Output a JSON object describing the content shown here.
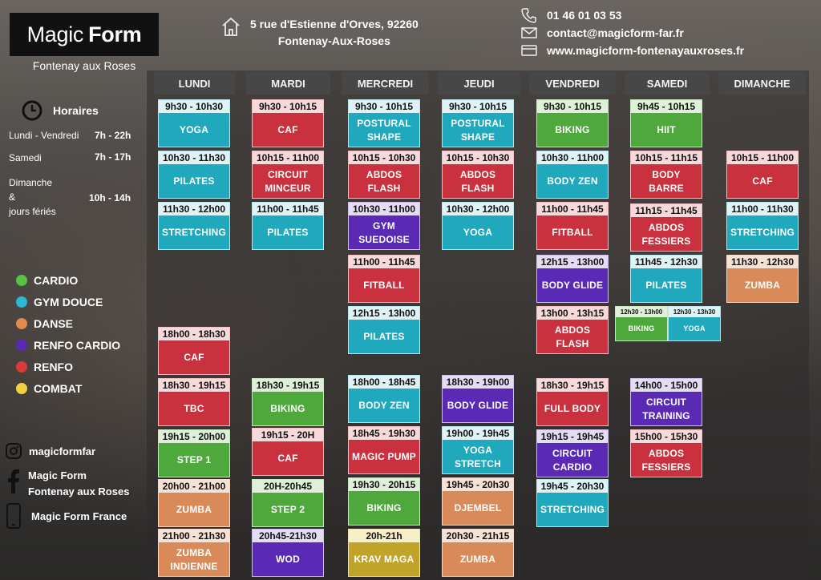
{
  "brand": {
    "magic": "Magic",
    "form": "Form",
    "subtitle": "Fontenay aux Roses"
  },
  "address": {
    "line1": "5 rue d'Estienne d'Orves, 92260",
    "line2": "Fontenay-Aux-Roses"
  },
  "contact": {
    "phone": "01 46 01 03 53",
    "email": "contact@magicform-far.fr",
    "website": "www.magicform-fontenayauxroses.fr"
  },
  "hours": {
    "title": "Horaires",
    "rows": [
      {
        "label": "Lundi - Vendredi",
        "value": "7h - 22h"
      },
      {
        "label": "Samedi",
        "value": "7h - 17h"
      },
      {
        "label1": "Dimanche",
        "label2": "&",
        "label3": "jours fériés",
        "value": "10h - 14h"
      }
    ]
  },
  "legend": [
    {
      "label": "CARDIO",
      "color": "#57c246"
    },
    {
      "label": "GYM DOUCE",
      "color": "#2bb8d0"
    },
    {
      "label": "DANSE",
      "color": "#e08a4d"
    },
    {
      "label": "RENFO CARDIO",
      "color": "#5a2ab4"
    },
    {
      "label": "RENFO",
      "color": "#d93a3a"
    },
    {
      "label": "COMBAT",
      "color": "#f2d040"
    }
  ],
  "social": {
    "instagram": "magicformfar",
    "facebook1": "Magic Form",
    "facebook2": "Fontenay aux Roses",
    "app": "Magic Form France"
  },
  "days": [
    "LUNDI",
    "MARDI",
    "MERCREDI",
    "JEUDI",
    "VENDREDI",
    "SAMEDI",
    "DIMANCHE"
  ],
  "classes": {
    "lundi": [
      {
        "time": "9h30 - 10h30",
        "name": "YOGA",
        "cat": "teal"
      },
      {
        "time": "10h30 - 11h30",
        "name": "PILATES",
        "cat": "teal"
      },
      {
        "time": "11h30 - 12h00",
        "name": "STRETCHING",
        "cat": "teal"
      },
      {
        "time": "18h00 - 18h30",
        "name": "CAF",
        "cat": "red"
      },
      {
        "time": "18h30 - 19h15",
        "name": "TBC",
        "cat": "red"
      },
      {
        "time": "19h15 - 20h00",
        "name": "STEP 1",
        "cat": "green"
      },
      {
        "time": "20h00 - 21h00",
        "name": "ZUMBA",
        "cat": "orange"
      },
      {
        "time": "21h00 - 21h30",
        "name": "ZUMBA INDIENNE",
        "cat": "orange"
      }
    ],
    "mardi": [
      {
        "time": "9h30 - 10h15",
        "name": "CAF",
        "cat": "red"
      },
      {
        "time": "10h15 - 11h00",
        "name": "CIRCUIT MINCEUR",
        "cat": "red"
      },
      {
        "time": "11h00 - 11h45",
        "name": "PILATES",
        "cat": "teal"
      },
      {
        "time": "18h30 - 19h15",
        "name": "BIKING",
        "cat": "green"
      },
      {
        "time": "19h15 - 20H",
        "name": "CAF",
        "cat": "red"
      },
      {
        "time": "20H-20h45",
        "name": "STEP 2",
        "cat": "green"
      },
      {
        "time": "20h45-21h30",
        "name": "WOD",
        "cat": "purple"
      }
    ],
    "mercredi": [
      {
        "time": "9h30 - 10h15",
        "name": "POSTURAL SHAPE",
        "cat": "teal"
      },
      {
        "time": "10h15 - 10h30",
        "name": "ABDOS FLASH",
        "cat": "red"
      },
      {
        "time": "10h30 - 11h00",
        "name": "GYM SUEDOISE",
        "cat": "purple"
      },
      {
        "time": "11h00 - 11h45",
        "name": "FITBALL",
        "cat": "red"
      },
      {
        "time": "12h15 - 13h00",
        "name": "PILATES",
        "cat": "teal"
      },
      {
        "time": "18h00 - 18h45",
        "name": "BODY ZEN",
        "cat": "teal"
      },
      {
        "time": "18h45 - 19h30",
        "name": "MAGIC PUMP",
        "cat": "red"
      },
      {
        "time": "19h30 - 20h15",
        "name": "BIKING",
        "cat": "green"
      },
      {
        "time": "20h-21h",
        "name": "KRAV MAGA",
        "cat": "yellow"
      }
    ],
    "jeudi": [
      {
        "time": "9h30 - 10h15",
        "name": "POSTURAL SHAPE",
        "cat": "teal"
      },
      {
        "time": "10h15 - 10h30",
        "name": "ABDOS FLASH",
        "cat": "red"
      },
      {
        "time": "10h30 - 12h00",
        "name": "YOGA",
        "cat": "teal"
      },
      {
        "time": "18h30 - 19h00",
        "name": "BODY GLIDE",
        "cat": "purple"
      },
      {
        "time": "19h00 - 19h45",
        "name": "YOGA STRETCH",
        "cat": "teal"
      },
      {
        "time": "19h45 - 20h30",
        "name": "DJEMBEL",
        "cat": "orange"
      },
      {
        "time": "20h30 - 21h15",
        "name": "ZUMBA",
        "cat": "orange"
      }
    ],
    "vendredi": [
      {
        "time": "9h30 - 10h15",
        "name": "BIKING",
        "cat": "green"
      },
      {
        "time": "10h30 - 11h00",
        "name": "BODY ZEN",
        "cat": "teal"
      },
      {
        "time": "11h00 - 11h45",
        "name": "FITBALL",
        "cat": "red"
      },
      {
        "time": "12h15 - 13h00",
        "name": "BODY GLIDE",
        "cat": "purple"
      },
      {
        "time": "13h00 - 13h15",
        "name": "ABDOS FLASH",
        "cat": "red"
      },
      {
        "time": "18h30 - 19h15",
        "name": "FULL BODY",
        "cat": "red"
      },
      {
        "time": "19h15 - 19h45",
        "name": "CIRCUIT CARDIO",
        "cat": "purple"
      },
      {
        "time": "19h45 - 20h30",
        "name": "STRETCHING",
        "cat": "teal"
      }
    ],
    "samedi": [
      {
        "time": "9h45 - 10h15",
        "name": "HIIT",
        "cat": "green"
      },
      {
        "time": "10h15 - 11h15",
        "name": "BODY BARRE",
        "cat": "red"
      },
      {
        "time": "11h15 - 11h45",
        "name": "ABDOS FESSIERS",
        "cat": "red"
      },
      {
        "time": "11h45 - 12h30",
        "name": "PILATES",
        "cat": "teal"
      },
      {
        "time": "12h30 - 13h00",
        "name": "BIKING",
        "cat": "green"
      },
      {
        "time": "12h30 - 13h30",
        "name": "YOGA",
        "cat": "teal"
      },
      {
        "time": "14h00 - 15h00",
        "name": "CIRCUIT TRAINING",
        "cat": "purple"
      },
      {
        "time": "15h00 - 15h30",
        "name": "ABDOS FESSIERS",
        "cat": "red"
      }
    ],
    "dimanche": [
      {
        "time": "10h15 - 11h00",
        "name": "CAF",
        "cat": "red"
      },
      {
        "time": "11h00 - 11h30",
        "name": "STRETCHING",
        "cat": "teal"
      },
      {
        "time": "11h30 - 12h30",
        "name": "ZUMBA",
        "cat": "orange"
      }
    ]
  }
}
